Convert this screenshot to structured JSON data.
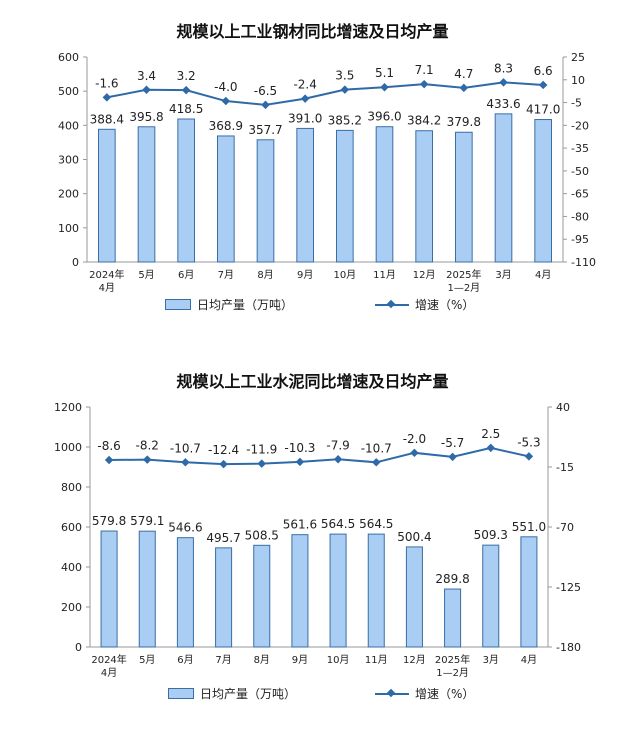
{
  "colors": {
    "bar_fill": "#a9cdf3",
    "bar_stroke": "#3a6ea5",
    "line": "#2f6aa8"
  },
  "charts": [
    {
      "title": "规模以上工业钢材同比增速及日均产量",
      "legend_bar": "日均产量（万吨）",
      "legend_line": "增速（%）"
    },
    {
      "title": "规模以上工业水泥同比增速及日均产量",
      "legend_bar": "日均产量（万吨）",
      "legend_line": "增速（%）"
    }
  ],
  "chart_data": [
    {
      "type": "bar",
      "title": "规模以上工业钢材同比增速及日均产量",
      "categories": [
        "2024年\n4月",
        "5月",
        "6月",
        "7月",
        "8月",
        "9月",
        "10月",
        "11月",
        "12月",
        "2025年\n1—2月",
        "3月",
        "4月"
      ],
      "series": [
        {
          "name": "日均产量（万吨）",
          "type": "bar",
          "axis": "left",
          "values": [
            388.4,
            395.8,
            418.5,
            368.9,
            357.7,
            391.0,
            385.2,
            396.0,
            384.2,
            379.8,
            433.6,
            417.0
          ]
        },
        {
          "name": "增速（%）",
          "type": "line",
          "axis": "right",
          "values": [
            -1.6,
            3.4,
            3.2,
            -4.0,
            -6.5,
            -2.4,
            3.5,
            5.1,
            7.1,
            4.7,
            8.3,
            6.6
          ]
        }
      ],
      "ylim_left": [
        0,
        600
      ],
      "yticks_left": [
        0,
        100,
        200,
        300,
        400,
        500,
        600
      ],
      "ylim_right": [
        -110,
        25
      ],
      "yticks_right": [
        25,
        10,
        -5,
        -20,
        -35,
        -50,
        -65,
        -80,
        -95,
        -110
      ],
      "grid": false,
      "legend": "bottom"
    },
    {
      "type": "bar",
      "title": "规模以上工业水泥同比增速及日均产量",
      "categories": [
        "2024年\n4月",
        "5月",
        "6月",
        "7月",
        "8月",
        "9月",
        "10月",
        "11月",
        "12月",
        "2025年\n1—2月",
        "3月",
        "4月"
      ],
      "series": [
        {
          "name": "日均产量（万吨）",
          "type": "bar",
          "axis": "left",
          "values": [
            579.8,
            579.1,
            546.6,
            495.7,
            508.5,
            561.6,
            564.5,
            564.5,
            500.4,
            289.8,
            509.3,
            551.0
          ]
        },
        {
          "name": "增速（%）",
          "type": "line",
          "axis": "right",
          "values": [
            -8.6,
            -8.2,
            -10.7,
            -12.4,
            -11.9,
            -10.3,
            -7.9,
            -10.7,
            -2.0,
            -5.7,
            2.5,
            -5.3
          ]
        }
      ],
      "ylim_left": [
        0,
        1200
      ],
      "yticks_left": [
        0,
        200,
        400,
        600,
        800,
        1000,
        1200
      ],
      "ylim_right": [
        -180,
        40
      ],
      "yticks_right": [
        40,
        -15,
        -70,
        -125,
        -180
      ],
      "grid": false,
      "legend": "bottom"
    }
  ]
}
